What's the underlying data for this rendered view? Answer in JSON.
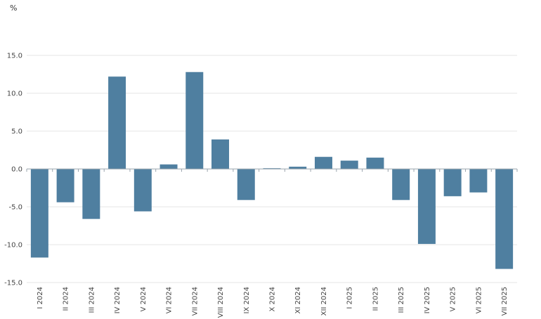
{
  "chart_data": {
    "type": "bar",
    "unit_label": "%",
    "categories": [
      "I 2024",
      "II 2024",
      "III 2024",
      "IV 2024",
      "V 2024",
      "VI 2024",
      "VII 2024",
      "VIII 2024",
      "IX 2024",
      "X 2024",
      "XI 2024",
      "XII 2024",
      "I 2025",
      "II 2025",
      "III 2025",
      "IV 2025",
      "V 2025",
      "VI 2025",
      "VII 2025"
    ],
    "values": [
      -11.7,
      -4.4,
      -6.6,
      12.2,
      -5.6,
      0.6,
      12.8,
      3.9,
      -4.1,
      0.1,
      0.3,
      1.6,
      1.1,
      1.5,
      -4.1,
      -9.9,
      -3.6,
      -3.1,
      -13.2
    ],
    "ylim": [
      -15,
      15
    ],
    "yticks": [
      "15.0",
      "10.0",
      "5.0",
      "0.0",
      "-5.0",
      "-10.0",
      "-15.0"
    ],
    "ytick_values": [
      15,
      10,
      5,
      0,
      -5,
      -10,
      -15
    ],
    "grid": true,
    "bar_color": "#4f7fa0"
  }
}
